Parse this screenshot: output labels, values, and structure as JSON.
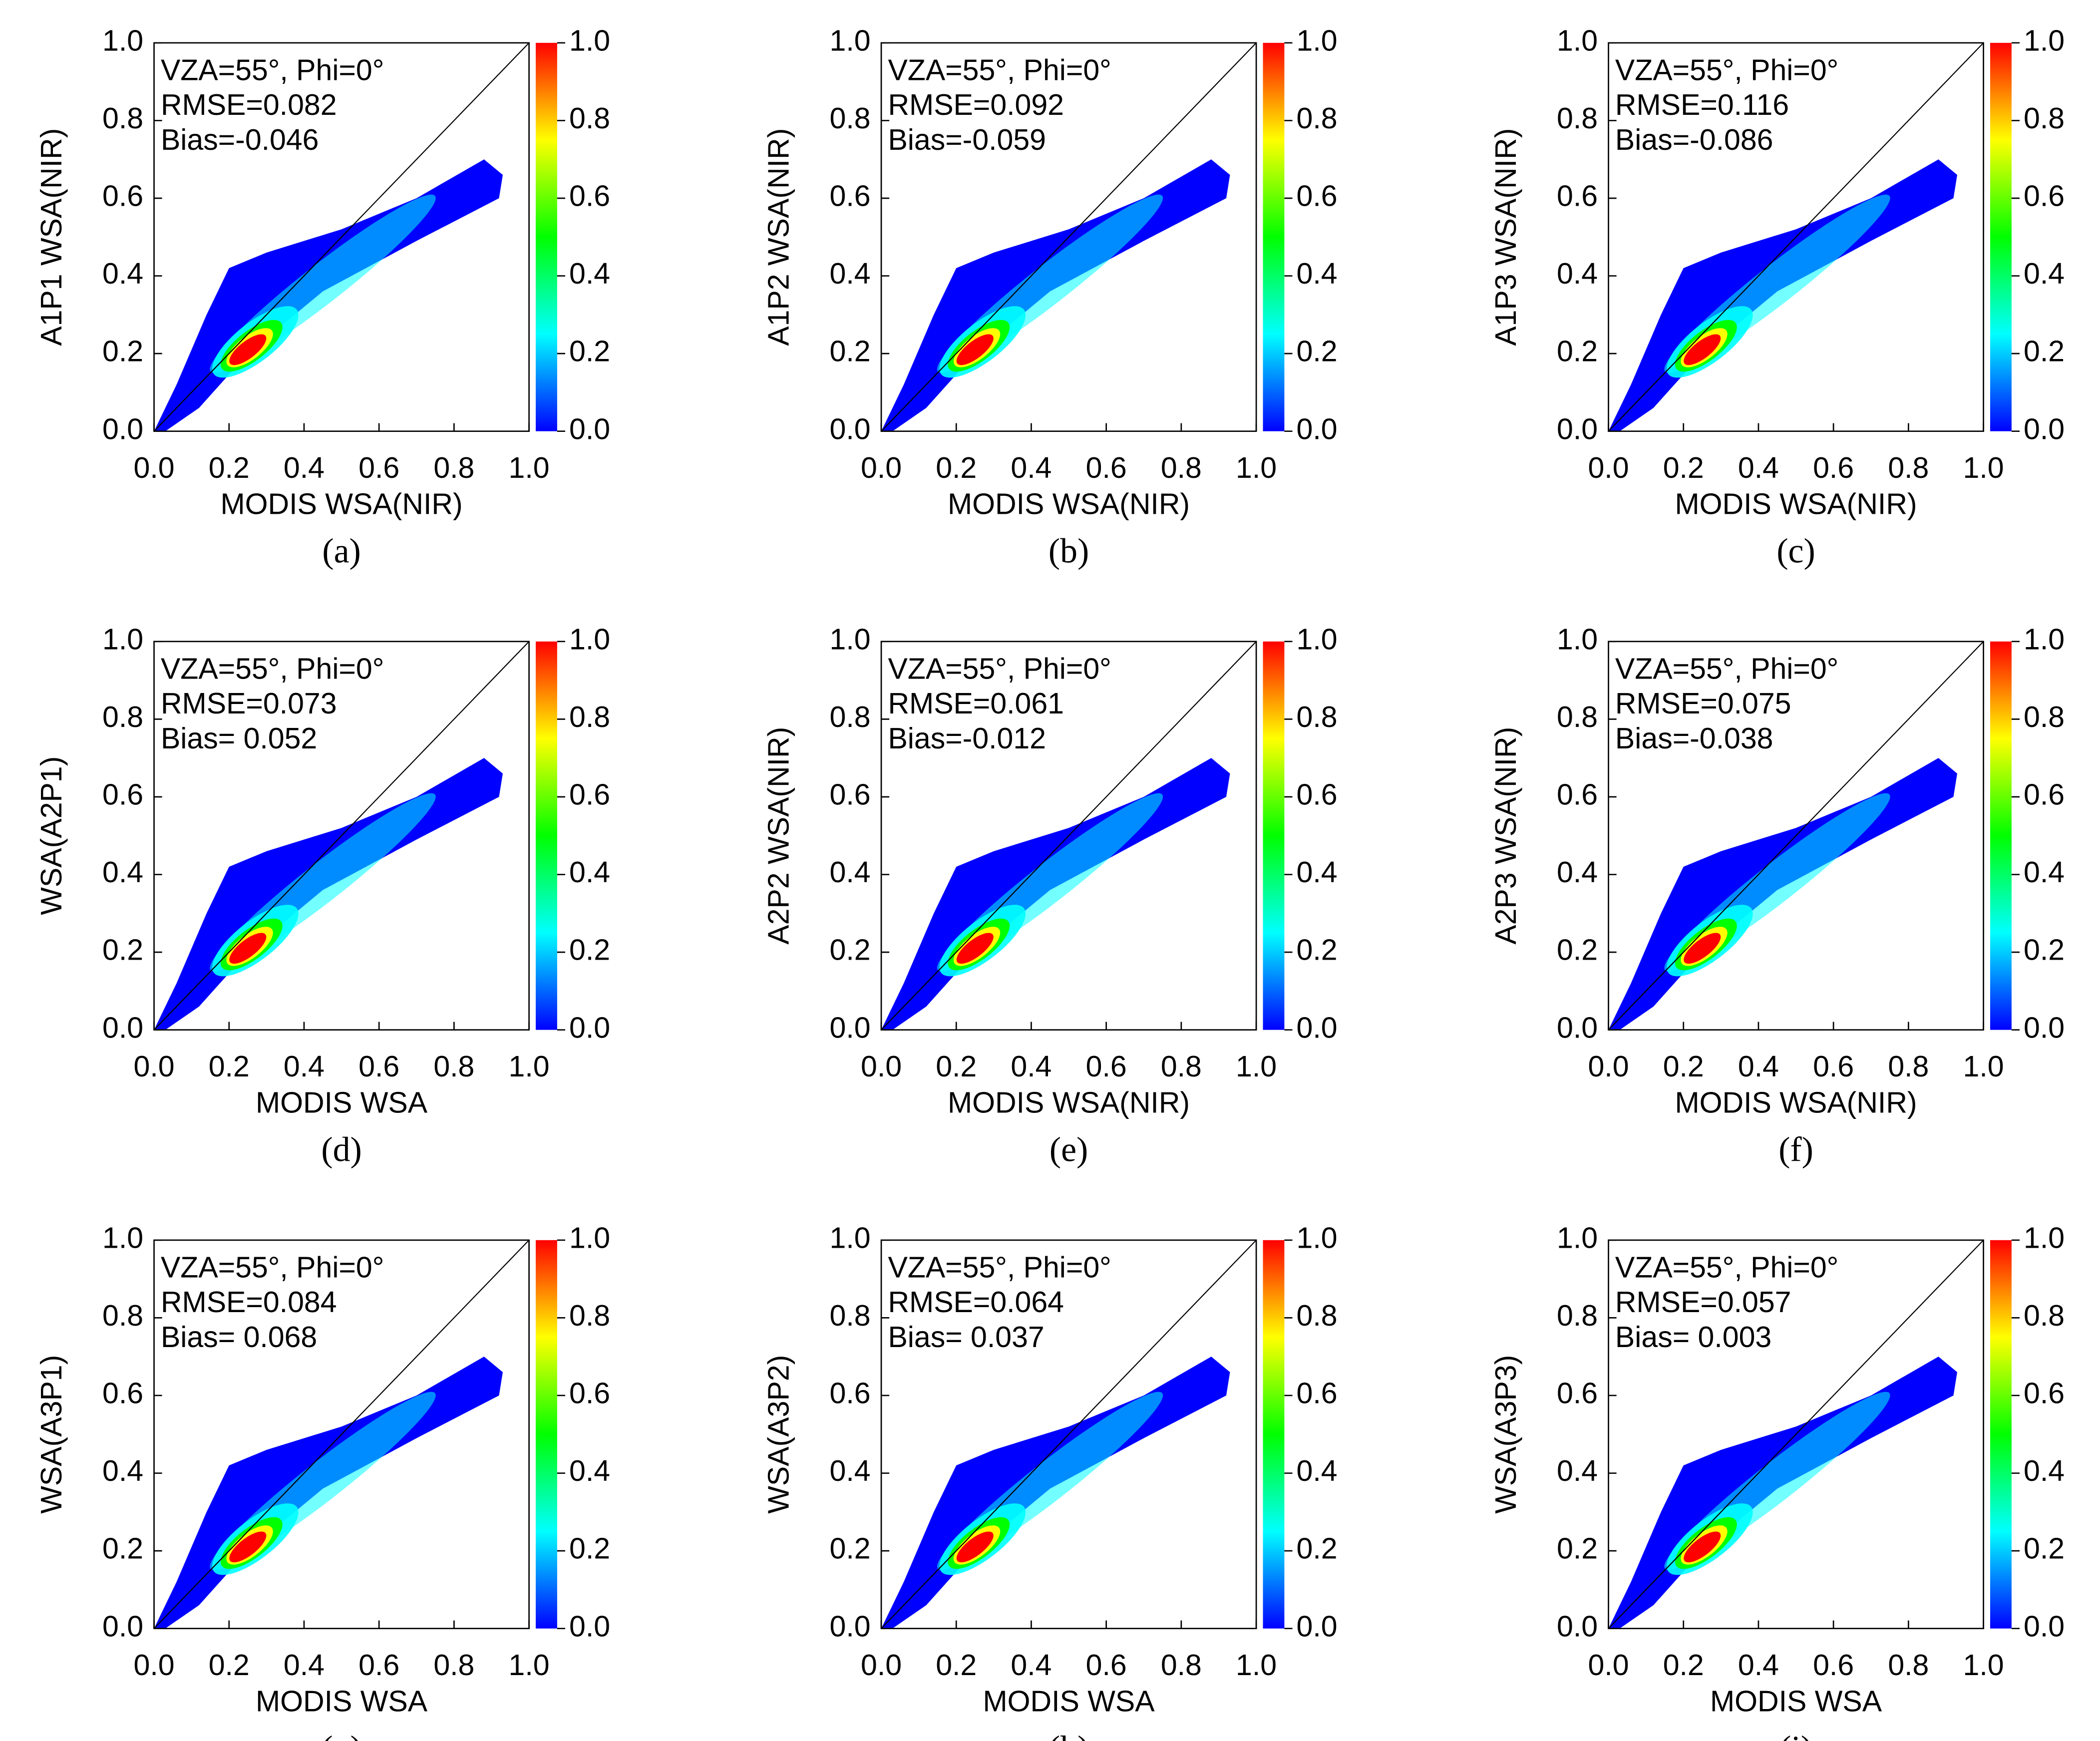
{
  "chart_data": [
    {
      "type": "density",
      "caption": "(a)",
      "xlabel": "MODIS WSA(NIR)",
      "ylabel": "A1P1 WSA(NIR)",
      "annotations": [
        "VZA=55°, Phi=0°",
        "RMSE=0.082",
        "Bias=-0.046"
      ],
      "xlim": [
        0,
        1
      ],
      "ylim": [
        0,
        1
      ],
      "xticks": [
        {
          "value": 0,
          "label": "0.0"
        },
        0.2,
        0.4,
        0.6,
        0.8,
        {
          "value": 1,
          "label": "1.0"
        }
      ],
      "yticks": [
        {
          "value": 0,
          "label": "0.0"
        },
        0.2,
        0.4,
        0.6,
        0.8,
        {
          "value": 1,
          "label": "1.0"
        }
      ],
      "colorbar": {
        "ylim": [
          0,
          1
        ],
        "yticks": [
          {
            "value": 0,
            "label": "0.0"
          },
          0.2,
          0.4,
          0.6,
          0.8,
          {
            "value": 1,
            "label": "1.0"
          }
        ],
        "colors": [
          "#0000ff",
          "#00ffff",
          "#00ff00",
          "#ffff00",
          "#ff0000"
        ]
      }
    },
    {
      "type": "density",
      "caption": "(b)",
      "xlabel": "MODIS WSA(NIR)",
      "ylabel": "A1P2 WSA(NIR)",
      "annotations": [
        "VZA=55°, Phi=0°",
        "RMSE=0.092",
        "Bias=-0.059"
      ],
      "xlim": [
        0,
        1
      ],
      "ylim": [
        0,
        1
      ],
      "xticks": [
        {
          "value": 0,
          "label": "0.0"
        },
        0.2,
        0.4,
        0.6,
        0.8,
        {
          "value": 1,
          "label": "1.0"
        }
      ],
      "yticks": [
        {
          "value": 0,
          "label": "0.0"
        },
        0.2,
        0.4,
        0.6,
        0.8,
        {
          "value": 1,
          "label": "1.0"
        }
      ],
      "colorbar": {
        "ylim": [
          0,
          1
        ],
        "yticks": [
          {
            "value": 0,
            "label": "0.0"
          },
          0.2,
          0.4,
          0.6,
          0.8,
          {
            "value": 1,
            "label": "1.0"
          }
        ],
        "colors": [
          "#0000ff",
          "#00ffff",
          "#00ff00",
          "#ffff00",
          "#ff0000"
        ]
      }
    },
    {
      "type": "density",
      "caption": "(c)",
      "xlabel": "MODIS WSA(NIR)",
      "ylabel": "A1P3 WSA(NIR)",
      "annotations": [
        "VZA=55°, Phi=0°",
        "RMSE=0.116",
        "Bias=-0.086"
      ],
      "xlim": [
        0,
        1
      ],
      "ylim": [
        0,
        1
      ],
      "xticks": [
        {
          "value": 0,
          "label": "0.0"
        },
        0.2,
        0.4,
        0.6,
        0.8,
        {
          "value": 1,
          "label": "1.0"
        }
      ],
      "yticks": [
        {
          "value": 0,
          "label": "0.0"
        },
        0.2,
        0.4,
        0.6,
        0.8,
        {
          "value": 1,
          "label": "1.0"
        }
      ],
      "colorbar": {
        "ylim": [
          0,
          1
        ],
        "yticks": [
          {
            "value": 0,
            "label": "0.0"
          },
          0.2,
          0.4,
          0.6,
          0.8,
          {
            "value": 1,
            "label": "1.0"
          }
        ],
        "colors": [
          "#0000ff",
          "#00ffff",
          "#00ff00",
          "#ffff00",
          "#ff0000"
        ]
      }
    },
    {
      "type": "density",
      "caption": "(d)",
      "xlabel": "MODIS WSA",
      "ylabel": "WSA(A2P1)",
      "annotations": [
        "VZA=55°, Phi=0°",
        "RMSE=0.073",
        "Bias= 0.052"
      ],
      "xlim": [
        0,
        1
      ],
      "ylim": [
        0,
        1
      ],
      "xticks": [
        {
          "value": 0,
          "label": "0.0"
        },
        0.2,
        0.4,
        0.6,
        0.8,
        {
          "value": 1,
          "label": "1.0"
        }
      ],
      "yticks": [
        {
          "value": 0,
          "label": "0.0"
        },
        0.2,
        0.4,
        0.6,
        0.8,
        {
          "value": 1,
          "label": "1.0"
        }
      ],
      "colorbar": {
        "ylim": [
          0,
          1
        ],
        "yticks": [
          {
            "value": 0,
            "label": "0.0"
          },
          0.2,
          0.4,
          0.6,
          0.8,
          {
            "value": 1,
            "label": "1.0"
          }
        ],
        "colors": [
          "#0000ff",
          "#00ffff",
          "#00ff00",
          "#ffff00",
          "#ff0000"
        ]
      }
    },
    {
      "type": "density",
      "caption": "(e)",
      "xlabel": "MODIS WSA(NIR)",
      "ylabel": "A2P2 WSA(NIR)",
      "annotations": [
        "VZA=55°, Phi=0°",
        "RMSE=0.061",
        "Bias=-0.012"
      ],
      "xlim": [
        0,
        1
      ],
      "ylim": [
        0,
        1
      ],
      "xticks": [
        {
          "value": 0,
          "label": "0.0"
        },
        0.2,
        0.4,
        0.6,
        0.8,
        {
          "value": 1,
          "label": "1.0"
        }
      ],
      "yticks": [
        {
          "value": 0,
          "label": "0.0"
        },
        0.2,
        0.4,
        0.6,
        0.8,
        {
          "value": 1,
          "label": "1.0"
        }
      ],
      "colorbar": {
        "ylim": [
          0,
          1
        ],
        "yticks": [
          {
            "value": 0,
            "label": "0.0"
          },
          0.2,
          0.4,
          0.6,
          0.8,
          {
            "value": 1,
            "label": "1.0"
          }
        ],
        "colors": [
          "#0000ff",
          "#00ffff",
          "#00ff00",
          "#ffff00",
          "#ff0000"
        ]
      }
    },
    {
      "type": "density",
      "caption": "(f)",
      "xlabel": "MODIS WSA(NIR)",
      "ylabel": "A2P3 WSA(NIR)",
      "annotations": [
        "VZA=55°, Phi=0°",
        "RMSE=0.075",
        "Bias=-0.038"
      ],
      "xlim": [
        0,
        1
      ],
      "ylim": [
        0,
        1
      ],
      "xticks": [
        {
          "value": 0,
          "label": "0.0"
        },
        0.2,
        0.4,
        0.6,
        0.8,
        {
          "value": 1,
          "label": "1.0"
        }
      ],
      "yticks": [
        {
          "value": 0,
          "label": "0.0"
        },
        0.2,
        0.4,
        0.6,
        0.8,
        {
          "value": 1,
          "label": "1.0"
        }
      ],
      "colorbar": {
        "ylim": [
          0,
          1
        ],
        "yticks": [
          {
            "value": 0,
            "label": "0.0"
          },
          0.2,
          0.4,
          0.6,
          0.8,
          {
            "value": 1,
            "label": "1.0"
          }
        ],
        "colors": [
          "#0000ff",
          "#00ffff",
          "#00ff00",
          "#ffff00",
          "#ff0000"
        ]
      }
    },
    {
      "type": "density",
      "caption": "(g)",
      "xlabel": "MODIS WSA",
      "ylabel": "WSA(A3P1)",
      "annotations": [
        "VZA=55°, Phi=0°",
        "RMSE=0.084",
        "Bias= 0.068"
      ],
      "xlim": [
        0,
        1
      ],
      "ylim": [
        0,
        1
      ],
      "xticks": [
        {
          "value": 0,
          "label": "0.0"
        },
        0.2,
        0.4,
        0.6,
        0.8,
        {
          "value": 1,
          "label": "1.0"
        }
      ],
      "yticks": [
        {
          "value": 0,
          "label": "0.0"
        },
        0.2,
        0.4,
        0.6,
        0.8,
        {
          "value": 1,
          "label": "1.0"
        }
      ],
      "colorbar": {
        "ylim": [
          0,
          1
        ],
        "yticks": [
          {
            "value": 0,
            "label": "0.0"
          },
          0.2,
          0.4,
          0.6,
          0.8,
          {
            "value": 1,
            "label": "1.0"
          }
        ],
        "colors": [
          "#0000ff",
          "#00ffff",
          "#00ff00",
          "#ffff00",
          "#ff0000"
        ]
      }
    },
    {
      "type": "density",
      "caption": "(h)",
      "xlabel": "MODIS WSA",
      "ylabel": "WSA(A3P2)",
      "annotations": [
        "VZA=55°, Phi=0°",
        "RMSE=0.064",
        "Bias= 0.037"
      ],
      "xlim": [
        0,
        1
      ],
      "ylim": [
        0,
        1
      ],
      "xticks": [
        {
          "value": 0,
          "label": "0.0"
        },
        0.2,
        0.4,
        0.6,
        0.8,
        {
          "value": 1,
          "label": "1.0"
        }
      ],
      "yticks": [
        {
          "value": 0,
          "label": "0.0"
        },
        0.2,
        0.4,
        0.6,
        0.8,
        {
          "value": 1,
          "label": "1.0"
        }
      ],
      "colorbar": {
        "ylim": [
          0,
          1
        ],
        "yticks": [
          {
            "value": 0,
            "label": "0.0"
          },
          0.2,
          0.4,
          0.6,
          0.8,
          {
            "value": 1,
            "label": "1.0"
          }
        ],
        "colors": [
          "#0000ff",
          "#00ffff",
          "#00ff00",
          "#ffff00",
          "#ff0000"
        ]
      }
    },
    {
      "type": "density",
      "caption": "(i)",
      "xlabel": "MODIS WSA",
      "ylabel": "WSA(A3P3)",
      "annotations": [
        "VZA=55°, Phi=0°",
        "RMSE=0.057",
        "Bias= 0.003"
      ],
      "xlim": [
        0,
        1
      ],
      "ylim": [
        0,
        1
      ],
      "xticks": [
        {
          "value": 0,
          "label": "0.0"
        },
        0.2,
        0.4,
        0.6,
        0.8,
        {
          "value": 1,
          "label": "1.0"
        }
      ],
      "yticks": [
        {
          "value": 0,
          "label": "0.0"
        },
        0.2,
        0.4,
        0.6,
        0.8,
        {
          "value": 1,
          "label": "1.0"
        }
      ],
      "colorbar": {
        "ylim": [
          0,
          1
        ],
        "yticks": [
          {
            "value": 0,
            "label": "0.0"
          },
          0.2,
          0.4,
          0.6,
          0.8,
          {
            "value": 1,
            "label": "1.0"
          }
        ],
        "colors": [
          "#0000ff",
          "#00ffff",
          "#00ff00",
          "#ffff00",
          "#ff0000"
        ]
      }
    }
  ]
}
